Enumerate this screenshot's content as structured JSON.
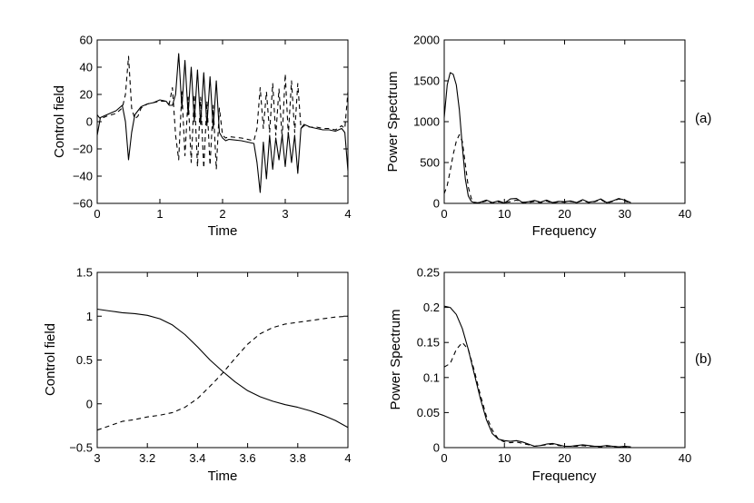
{
  "chart_data": [
    {
      "type": "line",
      "panel": "(a) left",
      "xlabel": "Time",
      "ylabel": "Control field",
      "xlim": [
        0,
        4
      ],
      "ylim": [
        -60,
        60
      ],
      "xticks": [
        0,
        1,
        2,
        3,
        4
      ],
      "yticks": [
        -60,
        -40,
        -20,
        0,
        20,
        40,
        60
      ],
      "series": [
        {
          "name": "solid",
          "style": "solid",
          "x": [
            0,
            0.05,
            0.15,
            0.3,
            0.4,
            0.45,
            0.5,
            0.55,
            0.6,
            0.65,
            0.7,
            0.8,
            0.9,
            1.0,
            1.1,
            1.15,
            1.2,
            1.25,
            1.3,
            1.35,
            1.4,
            1.45,
            1.5,
            1.55,
            1.6,
            1.65,
            1.7,
            1.75,
            1.8,
            1.85,
            1.9,
            1.95,
            2.0,
            2.05,
            2.1,
            2.3,
            2.5,
            2.55,
            2.6,
            2.65,
            2.7,
            2.75,
            2.8,
            2.85,
            2.9,
            2.95,
            3.0,
            3.05,
            3.1,
            3.15,
            3.2,
            3.25,
            3.3,
            3.4,
            3.5,
            3.6,
            3.7,
            3.8,
            3.9,
            3.95,
            4.0
          ],
          "y": [
            -10,
            3,
            5,
            8,
            12,
            0,
            -28,
            -8,
            5,
            8,
            11,
            13,
            14,
            16,
            15,
            12,
            12,
            20,
            50,
            10,
            45,
            5,
            40,
            0,
            38,
            -2,
            36,
            -3,
            33,
            -5,
            30,
            -8,
            -12,
            -14,
            -13,
            -14,
            -16,
            -30,
            -52,
            -15,
            -42,
            -10,
            -35,
            -12,
            -28,
            -10,
            -33,
            -8,
            -30,
            -10,
            -38,
            -5,
            -2,
            -4,
            -5,
            -6,
            -6,
            -7,
            -5,
            -8,
            -36
          ]
        },
        {
          "name": "dashed",
          "style": "dashed",
          "x": [
            0,
            0.05,
            0.15,
            0.3,
            0.4,
            0.45,
            0.5,
            0.55,
            0.6,
            0.65,
            0.7,
            0.8,
            0.9,
            1.0,
            1.1,
            1.15,
            1.2,
            1.25,
            1.3,
            1.35,
            1.4,
            1.45,
            1.5,
            1.55,
            1.6,
            1.65,
            1.7,
            1.75,
            1.8,
            1.85,
            1.9,
            1.95,
            2.0,
            2.05,
            2.1,
            2.3,
            2.5,
            2.55,
            2.6,
            2.65,
            2.7,
            2.75,
            2.8,
            2.85,
            2.9,
            2.95,
            3.0,
            3.05,
            3.1,
            3.15,
            3.2,
            3.25,
            3.3,
            3.4,
            3.5,
            3.6,
            3.7,
            3.8,
            3.9,
            3.95,
            4.0
          ],
          "y": [
            5,
            2,
            4,
            6,
            10,
            20,
            48,
            10,
            2,
            4,
            10,
            13,
            14,
            15,
            15,
            13,
            25,
            -10,
            -28,
            22,
            -25,
            18,
            -30,
            20,
            -33,
            18,
            -34,
            15,
            -32,
            12,
            -35,
            10,
            -10,
            -12,
            -11,
            -12,
            -14,
            -5,
            25,
            -5,
            22,
            -8,
            28,
            -10,
            24,
            -12,
            35,
            -10,
            30,
            -8,
            28,
            -5,
            -3,
            -4,
            -4,
            -5,
            -5,
            -6,
            -3,
            -5,
            22
          ]
        }
      ]
    },
    {
      "type": "line",
      "panel": "(a) right",
      "xlabel": "Frequency",
      "ylabel": "Power Spectrum",
      "xlim": [
        0,
        40
      ],
      "ylim": [
        0,
        2000
      ],
      "xticks": [
        0,
        10,
        20,
        30,
        40
      ],
      "yticks": [
        0,
        500,
        1000,
        1500,
        2000
      ],
      "series": [
        {
          "name": "solid",
          "style": "solid",
          "x": [
            0,
            0.5,
            1,
            1.5,
            2,
            2.5,
            3,
            3.5,
            4,
            4.5,
            5,
            5.5,
            6,
            7,
            8,
            9,
            10,
            11,
            12,
            13,
            14,
            15,
            16,
            17,
            18,
            19,
            20,
            21,
            22,
            23,
            24,
            25,
            26,
            27,
            28,
            29,
            30,
            31
          ],
          "y": [
            1050,
            1450,
            1600,
            1580,
            1450,
            1150,
            700,
            300,
            90,
            25,
            10,
            5,
            15,
            40,
            10,
            30,
            5,
            55,
            60,
            10,
            20,
            35,
            15,
            40,
            10,
            25,
            20,
            30,
            10,
            45,
            15,
            25,
            55,
            10,
            30,
            60,
            40,
            10
          ]
        },
        {
          "name": "dashed",
          "style": "dashed",
          "x": [
            0,
            0.5,
            1,
            1.5,
            2,
            2.5,
            3,
            3.5,
            4,
            4.5,
            5,
            5.5,
            6,
            7,
            8,
            9,
            10,
            11,
            12,
            13,
            14,
            15,
            16,
            17,
            18,
            19,
            20,
            21,
            22,
            23,
            24,
            25,
            26,
            27,
            28,
            29,
            30,
            31
          ],
          "y": [
            120,
            220,
            400,
            600,
            760,
            840,
            760,
            480,
            200,
            60,
            15,
            8,
            10,
            30,
            5,
            20,
            10,
            20,
            40,
            15,
            10,
            25,
            10,
            30,
            5,
            20,
            15,
            25,
            10,
            35,
            10,
            20,
            45,
            5,
            25,
            55,
            30,
            5
          ]
        }
      ]
    },
    {
      "type": "line",
      "panel": "(b) left",
      "xlabel": "Time",
      "ylabel": "Control field",
      "xlim": [
        3,
        4
      ],
      "ylim": [
        -0.5,
        1.5
      ],
      "xticks": [
        3,
        3.2,
        3.4,
        3.6,
        3.8,
        4
      ],
      "xtick_labels": [
        "3",
        "3.2",
        "3.4",
        "3.6",
        "3.8",
        "4"
      ],
      "yticks": [
        -0.5,
        0,
        0.5,
        1,
        1.5
      ],
      "ytick_labels": [
        "−0.5",
        "0",
        "0.5",
        "1",
        "1.5"
      ],
      "series": [
        {
          "name": "solid",
          "style": "solid",
          "x": [
            3.0,
            3.05,
            3.1,
            3.15,
            3.2,
            3.25,
            3.3,
            3.35,
            3.4,
            3.45,
            3.5,
            3.55,
            3.6,
            3.65,
            3.7,
            3.75,
            3.8,
            3.85,
            3.9,
            3.95,
            4.0
          ],
          "y": [
            1.08,
            1.06,
            1.04,
            1.03,
            1.01,
            0.97,
            0.9,
            0.79,
            0.65,
            0.5,
            0.37,
            0.25,
            0.15,
            0.08,
            0.03,
            -0.01,
            -0.04,
            -0.08,
            -0.13,
            -0.19,
            -0.27
          ]
        },
        {
          "name": "dashed",
          "style": "dashed",
          "x": [
            3.0,
            3.05,
            3.1,
            3.15,
            3.2,
            3.25,
            3.3,
            3.35,
            3.4,
            3.45,
            3.5,
            3.55,
            3.6,
            3.65,
            3.7,
            3.75,
            3.8,
            3.85,
            3.9,
            3.95,
            4.0
          ],
          "y": [
            -0.3,
            -0.25,
            -0.2,
            -0.18,
            -0.15,
            -0.13,
            -0.1,
            -0.04,
            0.06,
            0.2,
            0.35,
            0.52,
            0.68,
            0.8,
            0.87,
            0.91,
            0.93,
            0.95,
            0.97,
            0.99,
            1.0
          ]
        }
      ]
    },
    {
      "type": "line",
      "panel": "(b) right",
      "xlabel": "Frequency",
      "ylabel": "Power Spectrum",
      "xlim": [
        0,
        40
      ],
      "ylim": [
        0,
        0.25
      ],
      "xticks": [
        0,
        10,
        20,
        30,
        40
      ],
      "yticks": [
        0,
        0.05,
        0.1,
        0.15,
        0.2,
        0.25
      ],
      "series": [
        {
          "name": "solid",
          "style": "solid",
          "x": [
            0,
            1,
            2,
            3,
            4,
            5,
            6,
            7,
            8,
            9,
            10,
            11,
            12,
            13,
            14,
            15,
            16,
            17,
            18,
            19,
            20,
            21,
            22,
            23,
            24,
            25,
            26,
            27,
            28,
            29,
            30,
            31
          ],
          "y": [
            0.202,
            0.2,
            0.19,
            0.17,
            0.14,
            0.105,
            0.07,
            0.04,
            0.02,
            0.012,
            0.01,
            0.009,
            0.01,
            0.008,
            0.005,
            0.002,
            0.003,
            0.005,
            0.006,
            0.004,
            0.002,
            0.002,
            0.003,
            0.004,
            0.003,
            0.002,
            0.002,
            0.003,
            0.002,
            0.001,
            0.002,
            0.001
          ]
        },
        {
          "name": "dashed",
          "style": "dashed",
          "x": [
            0,
            1,
            2,
            3,
            4,
            5,
            6,
            7,
            8,
            9,
            10,
            11,
            12,
            13,
            14,
            15,
            16,
            17,
            18,
            19,
            20,
            21,
            22,
            23,
            24,
            25,
            26,
            27,
            28,
            29,
            30,
            31
          ],
          "y": [
            0.115,
            0.12,
            0.14,
            0.15,
            0.14,
            0.11,
            0.075,
            0.045,
            0.025,
            0.012,
            0.008,
            0.007,
            0.008,
            0.006,
            0.004,
            0.002,
            0.003,
            0.004,
            0.005,
            0.003,
            0.002,
            0.002,
            0.002,
            0.003,
            0.002,
            0.002,
            0.001,
            0.002,
            0.002,
            0.001,
            0.001,
            0.001
          ]
        }
      ]
    }
  ],
  "panel_labels": {
    "a": "(a)",
    "b": "(b)"
  }
}
